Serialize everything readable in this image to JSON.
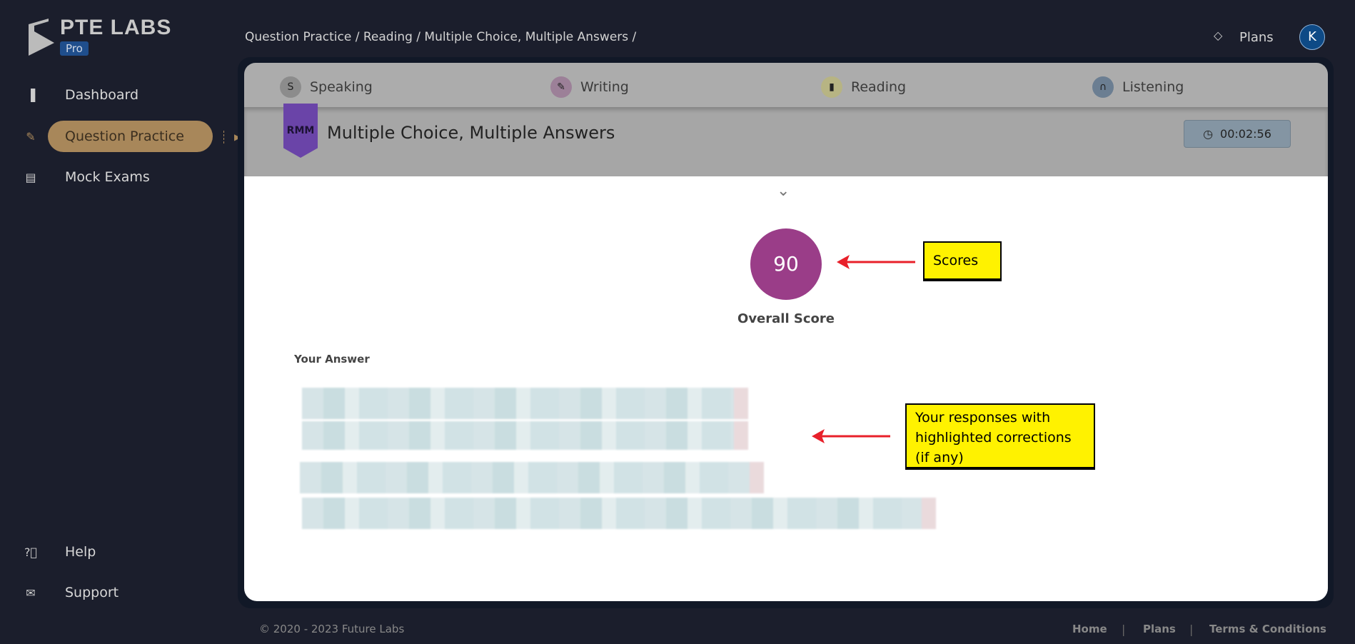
{
  "logo": {
    "name": "PTE LABS",
    "badge": "Pro"
  },
  "sidebar": {
    "items": [
      {
        "label": "Dashboard",
        "icon": "bar-chart-icon"
      },
      {
        "label": "Question Practice",
        "icon": "edit-icon",
        "active": true
      },
      {
        "label": "Mock Exams",
        "icon": "clipboard-icon"
      },
      {
        "label": "Help",
        "icon": "question-circle-icon"
      },
      {
        "label": "Support",
        "icon": "support-icon"
      }
    ]
  },
  "header": {
    "breadcrumb": "Question Practice / Reading / Multiple Choice, Multiple Answers /",
    "plans_label": "Plans",
    "avatar_initial": "K"
  },
  "tabs": [
    {
      "label": "Speaking",
      "color": "#8c8c8c"
    },
    {
      "label": "Writing",
      "color": "#9c8098"
    },
    {
      "label": "Reading",
      "color": "#b7b483"
    },
    {
      "label": "Listening",
      "color": "#6b7e92"
    }
  ],
  "question": {
    "badge": "RMM",
    "title": "Multiple Choice, Multiple Answers",
    "timer": "00:02:56"
  },
  "result": {
    "score": "90",
    "score_label": "Overall Score",
    "answer_heading": "Your Answer",
    "score_color": "#9a3d88"
  },
  "annotations": {
    "scores": "Scores",
    "responses": "Your responses with highlighted corrections (if any)"
  },
  "footer": {
    "copyright": "© 2020 - 2023 Future Labs",
    "links": [
      "Home",
      "Plans",
      "Terms & Conditions"
    ]
  }
}
